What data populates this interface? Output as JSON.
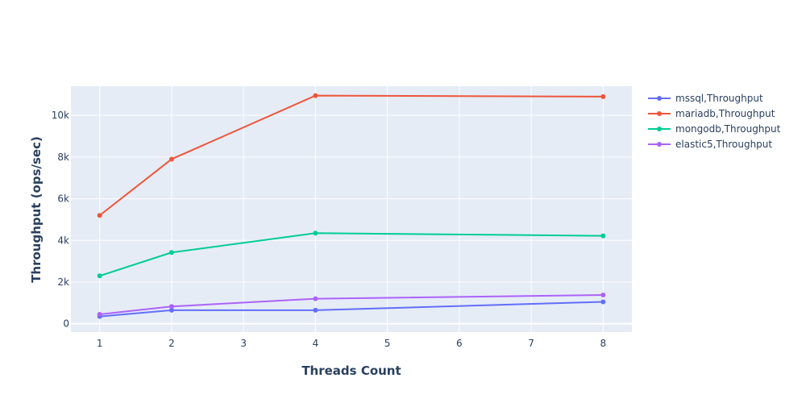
{
  "chart_data": {
    "type": "line",
    "xlabel": "Threads Count",
    "ylabel": "Throughput (ops/sec)",
    "xlim": [
      0.6,
      8.4
    ],
    "ylim": [
      -400,
      11400
    ],
    "x_ticks": [
      1,
      2,
      3,
      4,
      5,
      6,
      7,
      8
    ],
    "y_ticks": [
      0,
      2000,
      4000,
      6000,
      8000,
      10000
    ],
    "y_tick_labels": [
      "0",
      "2k",
      "4k",
      "6k",
      "8k",
      "10k"
    ],
    "grid": true,
    "legend_position": "top-right",
    "x": [
      1,
      2,
      4,
      8
    ],
    "series": [
      {
        "name": "mssql,Throughput",
        "color": "#636efa",
        "values": [
          350,
          650,
          650,
          1050
        ]
      },
      {
        "name": "mariadb,Throughput",
        "color": "#ef553b",
        "values": [
          5200,
          7900,
          10950,
          10900
        ]
      },
      {
        "name": "mongodb,Throughput",
        "color": "#00cc96",
        "values": [
          2300,
          3420,
          4350,
          4220
        ]
      },
      {
        "name": "elastic5,Throughput",
        "color": "#ab63fa",
        "values": [
          450,
          830,
          1200,
          1380
        ]
      }
    ]
  }
}
